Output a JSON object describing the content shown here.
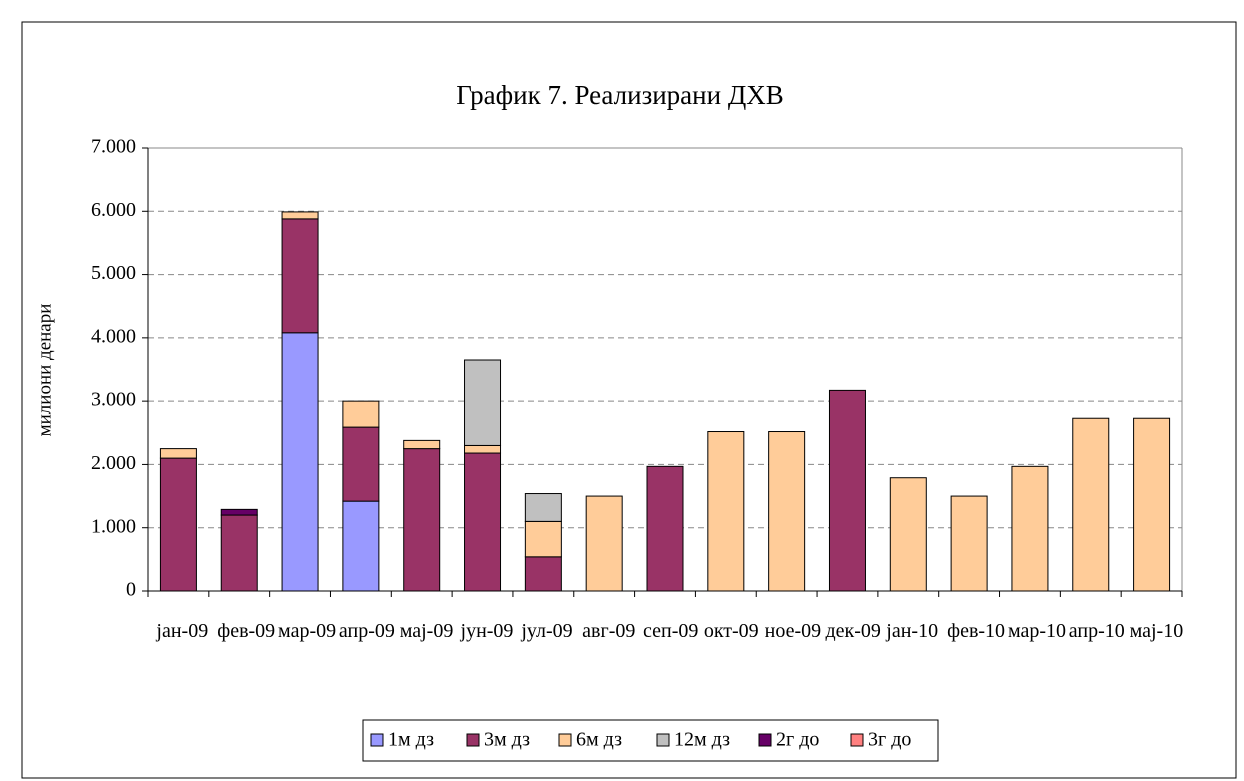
{
  "chart_data": {
    "type": "stacked_bar",
    "title": "График 7. Реализирани ДХВ",
    "y_label": "милиони денари",
    "categories": [
      "јан-09",
      "фев-09",
      "мар-09",
      "апр-09",
      "мај-09",
      "јун-09",
      "јул-09",
      "авг-09",
      "сеп-09",
      "окт-09",
      "ное-09",
      "дек-09",
      "јан-10",
      "фев-10",
      "мар-10",
      "апр-10",
      "мај-10"
    ],
    "series": [
      {
        "name": "1м дз",
        "color": "#9999ff",
        "values": [
          null,
          null,
          4080,
          1420,
          null,
          null,
          null,
          null,
          null,
          null,
          null,
          null,
          null,
          null,
          null,
          null,
          null
        ]
      },
      {
        "name": "3м дз",
        "color": "#993366",
        "values": [
          2100,
          1200,
          1800,
          1170,
          2250,
          2180,
          540,
          null,
          1970,
          null,
          null,
          3170,
          null,
          null,
          null,
          null,
          null
        ]
      },
      {
        "name": "6м дз",
        "color": "#ffcc99",
        "values": [
          150,
          null,
          110,
          410,
          130,
          120,
          560,
          1500,
          null,
          2520,
          2520,
          null,
          1790,
          1500,
          1970,
          2730,
          2730
        ]
      },
      {
        "name": "12м дз",
        "color": "#c0c0c0",
        "values": [
          null,
          null,
          null,
          null,
          null,
          1350,
          440,
          null,
          null,
          null,
          null,
          null,
          null,
          null,
          null,
          null,
          null
        ]
      },
      {
        "name": "2г до",
        "color": "#660066",
        "values": [
          null,
          90,
          null,
          null,
          null,
          null,
          null,
          null,
          null,
          null,
          null,
          null,
          null,
          null,
          null,
          null,
          null
        ]
      },
      {
        "name": "3г до",
        "color": "#ff8080",
        "values": [
          null,
          null,
          null,
          null,
          null,
          null,
          null,
          null,
          null,
          null,
          null,
          null,
          null,
          null,
          null,
          null,
          null
        ]
      }
    ],
    "ylim": [
      0,
      7000
    ],
    "yticks": [
      0,
      {
        "value": 1000,
        "label": "1.000"
      },
      {
        "value": 2000,
        "label": "2.000"
      },
      {
        "value": 3000,
        "label": "3.000"
      },
      {
        "value": 4000,
        "label": "4.000"
      },
      {
        "value": 5000,
        "label": "5.000"
      },
      {
        "value": 6000,
        "label": "6.000"
      },
      {
        "value": 7000,
        "label": "7.000"
      }
    ],
    "grid": true,
    "legend": "bottom"
  }
}
